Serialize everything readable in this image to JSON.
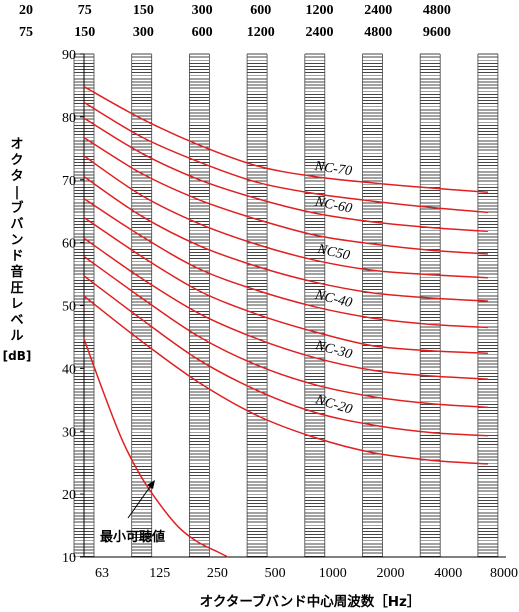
{
  "chart_data": {
    "type": "line",
    "title": "",
    "xlabel": "オクターブバンド中心周波数［Hz］",
    "ylabel": "オクターブバンド音圧レベル",
    "ylabel_unit": "[dB]",
    "band_edges_row1": [
      "20",
      "75",
      "150",
      "300",
      "600",
      "1200",
      "2400",
      "4800"
    ],
    "band_edges_row2": [
      "75",
      "150",
      "300",
      "600",
      "1200",
      "2400",
      "4800",
      "9600"
    ],
    "x_tick_labels": [
      "63",
      "125",
      "250",
      "500",
      "1000",
      "2000",
      "4000",
      "8000"
    ],
    "y_ticks": [
      10,
      20,
      30,
      40,
      50,
      60,
      70,
      80,
      90
    ],
    "ylim": [
      10,
      90
    ],
    "band_scale": "octave",
    "grid": "hatched band columns",
    "series": [
      {
        "name": "NC-70",
        "values": [
          84.8,
          79.7,
          75.5,
          72.2,
          70.5,
          69.5,
          68.7,
          68.0
        ]
      },
      {
        "name": "",
        "values": [
          82.3,
          76.8,
          72.8,
          69.6,
          67.8,
          66.6,
          65.6,
          64.8
        ]
      },
      {
        "name": "NC-60",
        "values": [
          79.8,
          74.2,
          70.0,
          67.0,
          64.7,
          63.3,
          62.4,
          61.8
        ]
      },
      {
        "name": "",
        "values": [
          76.7,
          71.0,
          66.8,
          63.7,
          61.2,
          59.8,
          58.8,
          58.2
        ]
      },
      {
        "name": "NC50",
        "values": [
          73.8,
          67.5,
          63.0,
          59.7,
          57.2,
          55.6,
          54.9,
          54.4
        ]
      },
      {
        "name": "",
        "values": [
          70.5,
          64.2,
          59.5,
          56.2,
          53.7,
          52.0,
          51.2,
          50.7
        ]
      },
      {
        "name": "NC-40",
        "values": [
          67.0,
          61.0,
          55.8,
          52.4,
          49.8,
          48.0,
          47.0,
          46.5
        ]
      },
      {
        "name": "",
        "values": [
          64.0,
          57.8,
          52.3,
          48.6,
          45.8,
          43.6,
          42.8,
          42.4
        ]
      },
      {
        "name": "NC-30",
        "values": [
          60.7,
          54.3,
          48.7,
          44.7,
          41.7,
          39.7,
          38.8,
          38.3
        ]
      },
      {
        "name": "",
        "values": [
          57.8,
          51.2,
          45.0,
          40.5,
          37.4,
          35.5,
          34.4,
          33.8
        ]
      },
      {
        "name": "NC-20",
        "values": [
          54.7,
          47.8,
          41.3,
          36.5,
          33.0,
          31.0,
          29.8,
          29.3
        ]
      },
      {
        "name": "",
        "values": [
          51.5,
          44.3,
          37.7,
          32.5,
          29.0,
          26.6,
          25.4,
          24.8
        ]
      }
    ],
    "threshold_curve": {
      "name": "最小可聴値",
      "points": [
        [
          63,
          44.7
        ],
        [
          80,
          36.0
        ],
        [
          100,
          28.5
        ],
        [
          125,
          22.8
        ],
        [
          160,
          18.0
        ],
        [
          200,
          14.5
        ],
        [
          250,
          12.3
        ],
        [
          315,
          10.8
        ],
        [
          355,
          10.0
        ]
      ]
    }
  },
  "colors": {
    "curve": "#e02020",
    "axis": "#000000",
    "hatch": "#444444"
  }
}
